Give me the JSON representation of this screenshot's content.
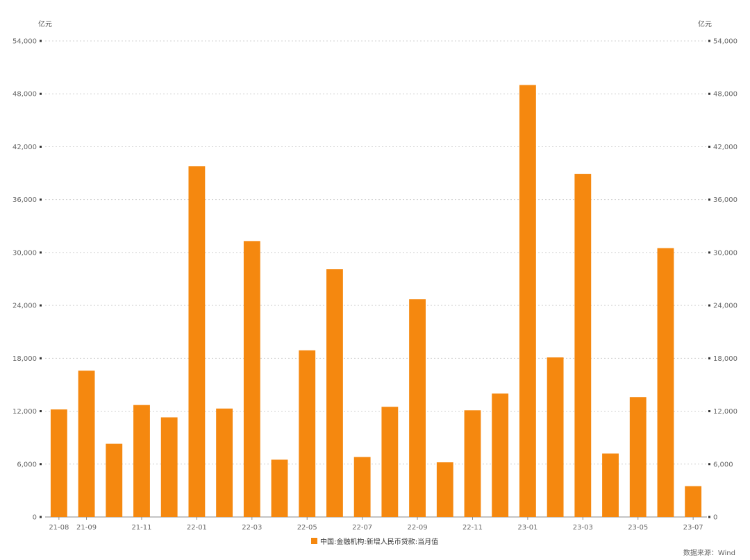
{
  "chart_data": {
    "type": "bar",
    "unit_left": "亿元",
    "unit_right": "亿元",
    "ylim": [
      0,
      54000
    ],
    "yticks": [
      0,
      6000,
      12000,
      18000,
      24000,
      30000,
      36000,
      42000,
      48000,
      54000
    ],
    "ytick_labels": [
      "0",
      "6,000",
      "12,000",
      "18,000",
      "24,000",
      "30,000",
      "36,000",
      "42,000",
      "48,000",
      "54,000"
    ],
    "months": [
      "21-08",
      "21-09",
      "21-10",
      "21-11",
      "21-12",
      "22-01",
      "22-02",
      "22-03",
      "22-04",
      "22-05",
      "22-06",
      "22-07",
      "22-08",
      "22-09",
      "22-10",
      "22-11",
      "22-12",
      "23-01",
      "23-02",
      "23-03",
      "23-04",
      "23-05",
      "23-06",
      "23-07"
    ],
    "xtick_labels": [
      "21-08",
      "21-09",
      "",
      "21-11",
      "",
      "22-01",
      "",
      "22-03",
      "",
      "22-05",
      "",
      "22-07",
      "",
      "22-09",
      "",
      "22-11",
      "",
      "23-01",
      "",
      "23-03",
      "",
      "23-05",
      "",
      "23-07"
    ],
    "series": [
      {
        "name": "中国:金融机构:新增人民币贷款:当月值",
        "color": "#F5880F",
        "values": [
          12200,
          16600,
          8300,
          12700,
          11300,
          39800,
          12300,
          31300,
          6500,
          18900,
          28100,
          6800,
          12500,
          24700,
          6200,
          12100,
          14000,
          49000,
          18100,
          38900,
          7200,
          13600,
          30500,
          3500
        ]
      }
    ],
    "grid": true,
    "legend_position": "bottom-center"
  },
  "legend": {
    "label": "中国:金融机构:新增人民币贷款:当月值"
  },
  "source": "数据来源：Wind"
}
